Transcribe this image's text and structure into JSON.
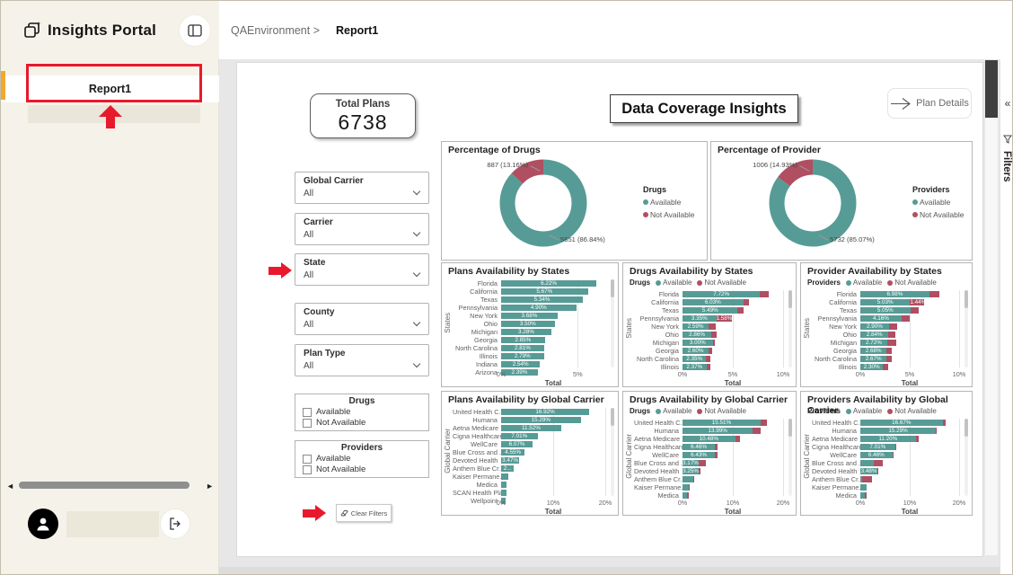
{
  "app": {
    "title": "Insights Portal"
  },
  "header": {
    "breadcrumb_env": "QAEnvironment >",
    "breadcrumb_page": "Report1"
  },
  "sidebar": {
    "report_item": "Report1"
  },
  "right_panel": {
    "collapse_glyph": "«",
    "label": "Filters"
  },
  "report": {
    "total_plans": {
      "label": "Total Plans",
      "value": "6738"
    },
    "page_title": "Data Coverage Insights",
    "plan_details_label": "Plan Details",
    "clear_filters_label": "Clear Filters",
    "dropdowns": [
      {
        "label": "Global Carrier",
        "value": "All"
      },
      {
        "label": "Carrier",
        "value": "All"
      },
      {
        "label": "State",
        "value": "All"
      },
      {
        "label": "County",
        "value": "All"
      },
      {
        "label": "Plan Type",
        "value": "All"
      }
    ],
    "checkbox_groups": [
      {
        "title": "Drugs",
        "options": [
          "Available",
          "Not Available"
        ]
      },
      {
        "title": "Providers",
        "options": [
          "Available",
          "Not Available"
        ]
      }
    ]
  },
  "colors": {
    "available": "#579b96",
    "not_available": "#b04f62",
    "annotation": "#e8192c",
    "accent": "#f0a92d"
  },
  "chart_data": [
    {
      "type": "donut",
      "title": "Percentage of Drugs",
      "legend_title": "Drugs",
      "legend": [
        "Available",
        "Not Available"
      ],
      "slices": [
        {
          "label": "Available",
          "value": 5851,
          "pct": 86.84,
          "callout": "5851 (86.84%)"
        },
        {
          "label": "Not Available",
          "value": 887,
          "pct": 13.16,
          "callout": "887 (13.16%)"
        }
      ]
    },
    {
      "type": "donut",
      "title": "Percentage of Provider",
      "legend_title": "Providers",
      "legend": [
        "Available",
        "Not Available"
      ],
      "slices": [
        {
          "label": "Available",
          "value": 5732,
          "pct": 85.07,
          "callout": "5732 (85.07%)"
        },
        {
          "label": "Not Available",
          "value": 1006,
          "pct": 14.93,
          "callout": "1006 (14.93%)"
        }
      ]
    },
    {
      "type": "bar",
      "title": "Plans Availability by States",
      "legend_title": null,
      "ylabel": "States",
      "xlabel": "Total",
      "xmax": 6.8,
      "xticks": [
        {
          "v": 0,
          "t": "0%"
        },
        {
          "v": 5,
          "t": "5%"
        }
      ],
      "rows": [
        {
          "label": "Florida",
          "a": 6.22,
          "al": "6.22%"
        },
        {
          "label": "California",
          "a": 5.67,
          "al": "5.67%"
        },
        {
          "label": "Texas",
          "a": 5.34,
          "al": "5.34%"
        },
        {
          "label": "Pennsylvania",
          "a": 4.9,
          "al": "4.90%"
        },
        {
          "label": "New York",
          "a": 3.68,
          "al": "3.68%"
        },
        {
          "label": "Ohio",
          "a": 3.5,
          "al": "3.50%"
        },
        {
          "label": "Michigan",
          "a": 3.28,
          "al": "3.28%"
        },
        {
          "label": "Georgia",
          "a": 2.85,
          "al": "2.85%"
        },
        {
          "label": "North Carolina",
          "a": 2.81,
          "al": "2.81%"
        },
        {
          "label": "Illinois",
          "a": 2.79,
          "al": "2.79%"
        },
        {
          "label": "Indiana",
          "a": 2.54,
          "al": "2.54%"
        },
        {
          "label": "Arizona",
          "a": 2.39,
          "al": "2.39%"
        }
      ]
    },
    {
      "type": "bar",
      "title": "Drugs Availability by States",
      "legend_title": "Drugs",
      "legend": [
        "Available",
        "Not Available"
      ],
      "ylabel": "States",
      "xlabel": "Total",
      "xmax": 10,
      "xticks": [
        {
          "v": 0,
          "t": "0%"
        },
        {
          "v": 5,
          "t": "5%"
        },
        {
          "v": 10,
          "t": "10%"
        }
      ],
      "rows": [
        {
          "label": "Florida",
          "a": 7.72,
          "al": "7.72%",
          "n": 0.85
        },
        {
          "label": "California",
          "a": 6.03,
          "al": "6.03%",
          "n": 0.55
        },
        {
          "label": "Texas",
          "a": 5.49,
          "al": "5.49%",
          "n": 0.55
        },
        {
          "label": "Pennsylvania",
          "a": 3.35,
          "al": "3.35%",
          "n": 1.58,
          "nl": "1.58%"
        },
        {
          "label": "New York",
          "a": 2.59,
          "al": "2.59%",
          "n": 0.75
        },
        {
          "label": "Ohio",
          "a": 2.86,
          "al": "2.86%",
          "n": 0.55
        },
        {
          "label": "Michigan",
          "a": 3.0,
          "al": "3.00%",
          "n": 0.25
        },
        {
          "label": "Georgia",
          "a": 2.6,
          "al": "2.60%",
          "n": 0.35
        },
        {
          "label": "North Carolina",
          "a": 2.35,
          "al": "2.35%",
          "n": 0.4
        },
        {
          "label": "Illinois",
          "a": 2.37,
          "al": "2.37%",
          "n": 0.4
        }
      ]
    },
    {
      "type": "bar",
      "title": "Provider Availability by States",
      "legend_title": "Providers",
      "legend": [
        "Available",
        "Not Available"
      ],
      "ylabel": "States",
      "xlabel": "Total",
      "xmax": 10,
      "xticks": [
        {
          "v": 0,
          "t": "0%"
        },
        {
          "v": 5,
          "t": "5%"
        },
        {
          "v": 10,
          "t": "10%"
        }
      ],
      "rows": [
        {
          "label": "Florida",
          "a": 6.98,
          "al": "6.98%",
          "n": 1.05
        },
        {
          "label": "California",
          "a": 5.03,
          "al": "5.03%",
          "n": 1.44,
          "nl": "1.44%"
        },
        {
          "label": "Texas",
          "a": 5.05,
          "al": "5.05%",
          "n": 0.85
        },
        {
          "label": "Pennsylvania",
          "a": 4.16,
          "al": "4.16%",
          "n": 0.8
        },
        {
          "label": "New York",
          "a": 2.9,
          "al": "2.90%",
          "n": 0.8
        },
        {
          "label": "Ohio",
          "a": 2.84,
          "al": "2.84%",
          "n": 0.75
        },
        {
          "label": "Michigan",
          "a": 2.72,
          "al": "2.72%",
          "n": 0.9
        },
        {
          "label": "Georgia",
          "a": 2.68,
          "al": "2.68%",
          "n": 0.5
        },
        {
          "label": "North Carolina",
          "a": 2.67,
          "al": "2.67%",
          "n": 0.55
        },
        {
          "label": "Illinois",
          "a": 2.3,
          "al": "2.30%",
          "n": 0.55
        }
      ]
    },
    {
      "type": "bar",
      "title": "Plans Availability by Global Carrier",
      "legend_title": null,
      "ylabel": "Global Carrier",
      "xlabel": "Total",
      "xmax": 20,
      "xticks": [
        {
          "v": 0,
          "t": "0%"
        },
        {
          "v": 10,
          "t": "10%"
        },
        {
          "v": 20,
          "t": "20%"
        }
      ],
      "rows": [
        {
          "label": "United Health C..",
          "a": 16.92,
          "al": "16.92%"
        },
        {
          "label": "Humana",
          "a": 15.29,
          "al": "15.29%"
        },
        {
          "label": "Aetna Medicare",
          "a": 11.52,
          "al": "11.52%"
        },
        {
          "label": "Cigna Healthcare",
          "a": 7.01,
          "al": "7.01%"
        },
        {
          "label": "WellCare",
          "a": 6.07,
          "al": "6.07%"
        },
        {
          "label": "Blue Cross and ..",
          "a": 4.55,
          "al": "4.55%"
        },
        {
          "label": "Devoted Health",
          "a": 3.47,
          "al": "3.47%"
        },
        {
          "label": "Anthem Blue Cr..",
          "a": 2.47,
          "al": "2..."
        },
        {
          "label": "Kaiser Permane..",
          "a": 1.35,
          "al": ""
        },
        {
          "label": "Medica",
          "a": 1.1,
          "al": ""
        },
        {
          "label": "SCAN Health Plan",
          "a": 0.95,
          "al": ""
        },
        {
          "label": "Wellpoint",
          "a": 0.9,
          "al": ""
        }
      ]
    },
    {
      "type": "bar",
      "title": "Drugs Availability by Global Carrier",
      "legend_title": "Drugs",
      "legend": [
        "Available",
        "Not Available"
      ],
      "ylabel": "Global Carrier",
      "xlabel": "Total",
      "xmax": 20,
      "xticks": [
        {
          "v": 0,
          "t": "0%"
        },
        {
          "v": 10,
          "t": "10%"
        },
        {
          "v": 20,
          "t": "20%"
        }
      ],
      "rows": [
        {
          "label": "United Health C..",
          "a": 15.51,
          "al": "15.51%",
          "n": 1.35
        },
        {
          "label": "Humana",
          "a": 13.99,
          "al": "13.99%",
          "n": 1.5
        },
        {
          "label": "Aetna Medicare",
          "a": 10.48,
          "al": "10.48%",
          "n": 0.9
        },
        {
          "label": "Cigna Healthcare",
          "a": 6.46,
          "al": "6.46%",
          "n": 0.55
        },
        {
          "label": "WellCare",
          "a": 6.43,
          "al": "6.43%",
          "n": 0.5
        },
        {
          "label": "Blue Cross and ..",
          "a": 3.17,
          "al": "3.17%",
          "n": 1.4
        },
        {
          "label": "Devoted Health",
          "a": 3.25,
          "al": "3.25%",
          "n": 0.3
        },
        {
          "label": "Anthem Blue Cr..",
          "a": 2.15,
          "al": "",
          "n": 0.15
        },
        {
          "label": "Kaiser Permane..",
          "a": 1.25,
          "al": "",
          "n": 0.1
        },
        {
          "label": "Medica",
          "a": 0.85,
          "al": "",
          "n": 0.4
        }
      ]
    },
    {
      "type": "bar",
      "title": "Providers Availability by Global Carrier",
      "legend_title": "Providers",
      "legend": [
        "Available",
        "Not Available"
      ],
      "ylabel": "Global Carrier",
      "xlabel": "Total",
      "xmax": 20,
      "xticks": [
        {
          "v": 0,
          "t": "0%"
        },
        {
          "v": 10,
          "t": "10%"
        },
        {
          "v": 20,
          "t": "20%"
        }
      ],
      "rows": [
        {
          "label": "United Health C..",
          "a": 16.67,
          "al": "16.67%",
          "n": 0.6
        },
        {
          "label": "Humana",
          "a": 15.29,
          "al": "15.29%",
          "n": 0.15
        },
        {
          "label": "Aetna Medicare",
          "a": 11.2,
          "al": "11.20%",
          "n": 0.55
        },
        {
          "label": "Cigna Healthcare",
          "a": 7.01,
          "al": "7.01%",
          "n": 0.1
        },
        {
          "label": "WellCare",
          "a": 6.46,
          "al": "6.46%",
          "n": 0.15
        },
        {
          "label": "Blue Cross and ..",
          "a": 2.75,
          "al": "",
          "n": 1.85
        },
        {
          "label": "Devoted Health",
          "a": 3.48,
          "al": "3.48%",
          "n": 0.1
        },
        {
          "label": "Anthem Blue Cr..",
          "a": 0.35,
          "al": "",
          "n": 2.05
        },
        {
          "label": "Kaiser Permane..",
          "a": 1.3,
          "al": "",
          "n": 0
        },
        {
          "label": "Medica",
          "a": 0.85,
          "al": "",
          "n": 0.45
        }
      ]
    }
  ]
}
